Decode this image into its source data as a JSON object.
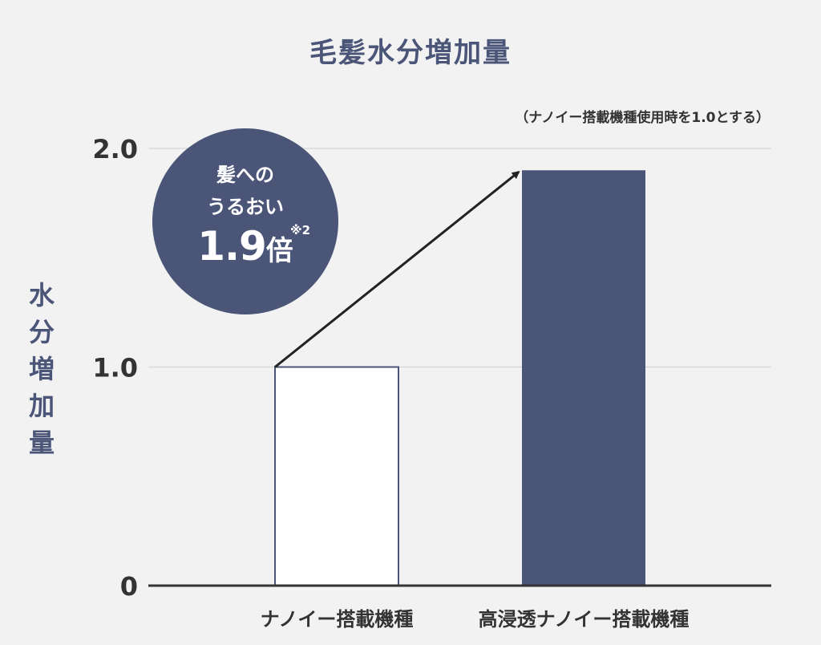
{
  "chart_data": {
    "type": "bar",
    "title": "毛髪水分増加量",
    "note": "（ナノイー搭載機種使用時を1.0とする）",
    "ylabel": "水分増加量",
    "xlabel": "",
    "categories": [
      "ナノイー搭載機種",
      "高浸透ナノイー搭載機種"
    ],
    "values": [
      1.0,
      1.9
    ],
    "ylim": [
      0,
      2.0
    ],
    "yticks": [
      0,
      1.0,
      2.0
    ],
    "ytick_labels": [
      "0",
      "1.0",
      "2.0"
    ],
    "grid": true,
    "bar_styles": [
      "outline",
      "filled"
    ],
    "colors": {
      "accent": "#4a5578",
      "axis": "#333333",
      "grid": "#d9d9d9",
      "outline_fill": "#ffffff"
    }
  },
  "badge": {
    "line1": "髪への",
    "line2": "うるおい",
    "value": "1.9",
    "unit": "倍",
    "footnote": "※2"
  }
}
